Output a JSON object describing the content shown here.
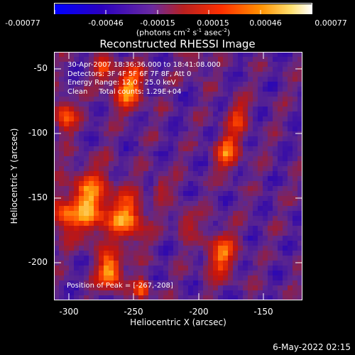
{
  "colorbar": {
    "tick_labels": [
      "-0.00077",
      "-0.00046",
      "-0.00015",
      "0.00015",
      "0.00046",
      "0.00077"
    ],
    "units_prefix": "(photons cm",
    "units_sup1": "-2",
    "units_mid1": " s",
    "units_sup2": "-1",
    "units_mid2": " asec",
    "units_sup3": "-2",
    "units_suffix": ")"
  },
  "title": "Reconstructed RHESSI Image",
  "info": {
    "line1": "30-Apr-2007 18:36:36.000 to 18:41:08.000",
    "line2": "Detectors: 3F 4F 5F 6F 7F 8F, Att 0",
    "line3": "Energy Range: 12.0 - 25.0 keV",
    "line4": "Clean     Total counts: 1.29E+04"
  },
  "peak_text": "Position of Peak = [-267,-208]",
  "x_axis": {
    "label": "Heliocentric X (arcsec)",
    "ticks": [
      "-300",
      "-250",
      "-200",
      "-150"
    ],
    "range": [
      -311,
      -120
    ]
  },
  "y_axis": {
    "label": "Heliocentric Y (arcsec)",
    "ticks": [
      "-50",
      "-100",
      "-150",
      "-200"
    ],
    "range": [
      -228,
      -36
    ]
  },
  "peak": {
    "x": -267,
    "y": -208
  },
  "date_stamp": "6-May-2022 02:15",
  "colors": {
    "background": "#000000",
    "colormap": [
      "#0000ff",
      "#2a00c0",
      "#5a2a9c",
      "#b02a2a",
      "#ff3000",
      "#ff8c00",
      "#ffe070",
      "#ffffff"
    ]
  }
}
